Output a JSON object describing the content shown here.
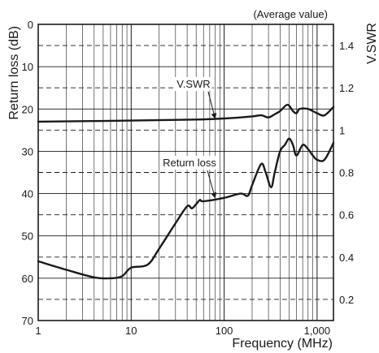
{
  "chart_data": {
    "type": "line",
    "note": "(Average value)",
    "xlabel": "Frequency (MHz)",
    "ylabel_left": "Return loss (dB)",
    "ylabel_right": "V.SWR",
    "x_scale": "log",
    "xlim": [
      1,
      1500
    ],
    "x_ticks": [
      1,
      10,
      100,
      1000
    ],
    "x_tick_labels": [
      "1",
      "10",
      "100",
      "1,000"
    ],
    "ylim_left": [
      0,
      70
    ],
    "y_left_inverted": true,
    "y_left_ticks": [
      0,
      10,
      20,
      30,
      40,
      50,
      60,
      70
    ],
    "y_left_tick_labels": [
      "0",
      "10",
      "20",
      "30",
      "40",
      "50",
      "60",
      "70"
    ],
    "ylim_right": [
      0.1,
      1.5
    ],
    "y_right_ticks": [
      0.2,
      0.4,
      0.6,
      0.8,
      1,
      1.2,
      1.4
    ],
    "y_right_tick_labels": [
      "0.2",
      "0.4",
      "0.6",
      "0.8",
      "1",
      "1.2",
      "1.4"
    ],
    "grid": true,
    "series": [
      {
        "name": "V.SWR",
        "axis": "right",
        "x": [
          1,
          10,
          50,
          100,
          200,
          250,
          300,
          350,
          400,
          480,
          550,
          600,
          650,
          800,
          1000,
          1200,
          1500
        ],
        "y": [
          1.04,
          1.045,
          1.05,
          1.055,
          1.065,
          1.07,
          1.06,
          1.075,
          1.09,
          1.12,
          1.09,
          1.08,
          1.1,
          1.1,
          1.08,
          1.07,
          1.11
        ]
      },
      {
        "name": "Return loss",
        "axis": "left",
        "x": [
          1,
          2,
          4,
          6,
          8,
          10,
          15,
          20,
          30,
          40,
          45,
          50,
          55,
          60,
          100,
          150,
          180,
          200,
          250,
          280,
          320,
          350,
          400,
          450,
          500,
          550,
          600,
          700,
          800,
          900,
          1000,
          1200,
          1500
        ],
        "y": [
          56,
          58,
          59.8,
          60,
          59.5,
          57.5,
          56.8,
          53,
          47,
          43,
          43.5,
          42.5,
          41.5,
          41.8,
          41,
          40,
          40.5,
          38,
          33,
          35,
          38.5,
          35,
          30,
          28.5,
          27,
          28.5,
          31,
          28.5,
          29.5,
          31,
          32,
          32,
          28
        ]
      }
    ],
    "annotations": [
      {
        "text": "V.SWR",
        "series": "V.SWR"
      },
      {
        "text": "Return loss",
        "series": "Return loss"
      }
    ]
  }
}
